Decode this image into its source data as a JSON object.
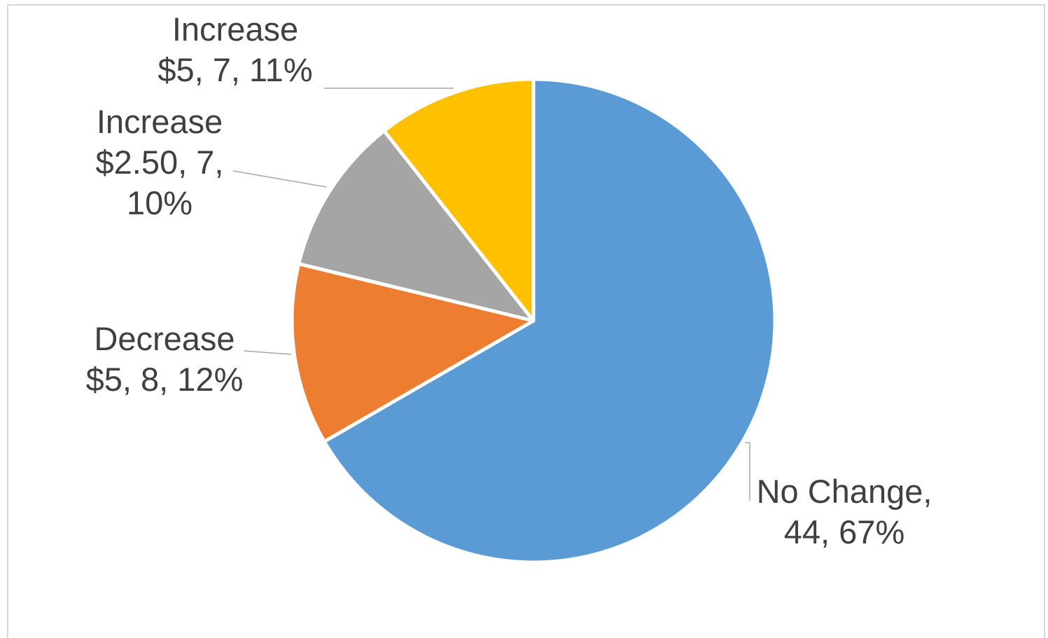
{
  "chart_data": {
    "type": "pie",
    "categories": [
      "No Change",
      "Decrease $5",
      "Increase $2.50",
      "Increase $5"
    ],
    "values": [
      44,
      8,
      7,
      7
    ],
    "percents": [
      67,
      12,
      10,
      11
    ],
    "colors": [
      "#5b9bd5",
      "#ed7d31",
      "#a5a5a5",
      "#ffc000"
    ],
    "start_angle_deg": 0,
    "direction": "clockwise",
    "title": "",
    "legend": "none",
    "data_labels": [
      [
        "No Change,",
        "44, 67%"
      ],
      [
        "Decrease",
        "$5, 8, 12%"
      ],
      [
        "Increase",
        "$2.50, 7,",
        "10%"
      ],
      [
        "Increase",
        "$5, 7, 11%"
      ]
    ]
  }
}
